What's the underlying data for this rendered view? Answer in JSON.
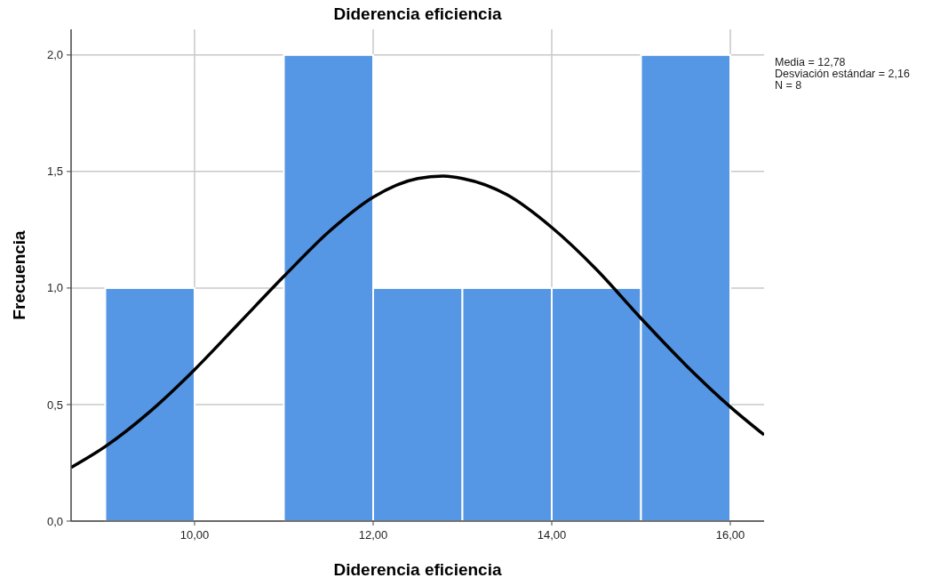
{
  "chart_data": {
    "type": "histogram",
    "title": "Diderencia eficiencia",
    "xlabel": "Diderencia eficiencia",
    "ylabel": "Frecuencia",
    "bins": [
      9,
      10,
      11,
      12,
      13,
      14,
      15,
      16
    ],
    "values": [
      1,
      0,
      2,
      1,
      1,
      1,
      2
    ],
    "color": "#5596e5",
    "series": [
      {
        "type": "line",
        "color": "#000000",
        "x": [
          8.617,
          9,
          9.5,
          10,
          10.5,
          11,
          11.5,
          12,
          12.5,
          12.78,
          13,
          13.5,
          14,
          14.5,
          15,
          15.5,
          16,
          16.378
        ],
        "values": [
          0.23,
          0.32,
          0.47,
          0.65,
          0.85,
          1.05,
          1.24,
          1.39,
          1.47,
          1.48,
          1.47,
          1.4,
          1.26,
          1.08,
          0.87,
          0.67,
          0.49,
          0.37
        ]
      }
    ],
    "xlim": [
      8.617,
      16.378
    ],
    "xticks": [
      {
        "value": 10,
        "label": "10,00"
      },
      {
        "value": 12,
        "label": "12,00"
      },
      {
        "value": 14,
        "label": "14,00"
      },
      {
        "value": 16,
        "label": "16,00"
      }
    ],
    "ylim": [
      0,
      2.11
    ],
    "yticks": [
      {
        "value": 0,
        "label": "0,0"
      },
      {
        "value": 0.5,
        "label": "0,5"
      },
      {
        "value": 1,
        "label": "1,0"
      },
      {
        "value": 1.5,
        "label": "1,5"
      },
      {
        "value": 2,
        "label": "2,0"
      }
    ],
    "grid": true,
    "line_style": "solid",
    "marker": "none",
    "annotations": [
      "Media = 12,78",
      "Desviación estándar = 2,16",
      "N = 8"
    ]
  }
}
